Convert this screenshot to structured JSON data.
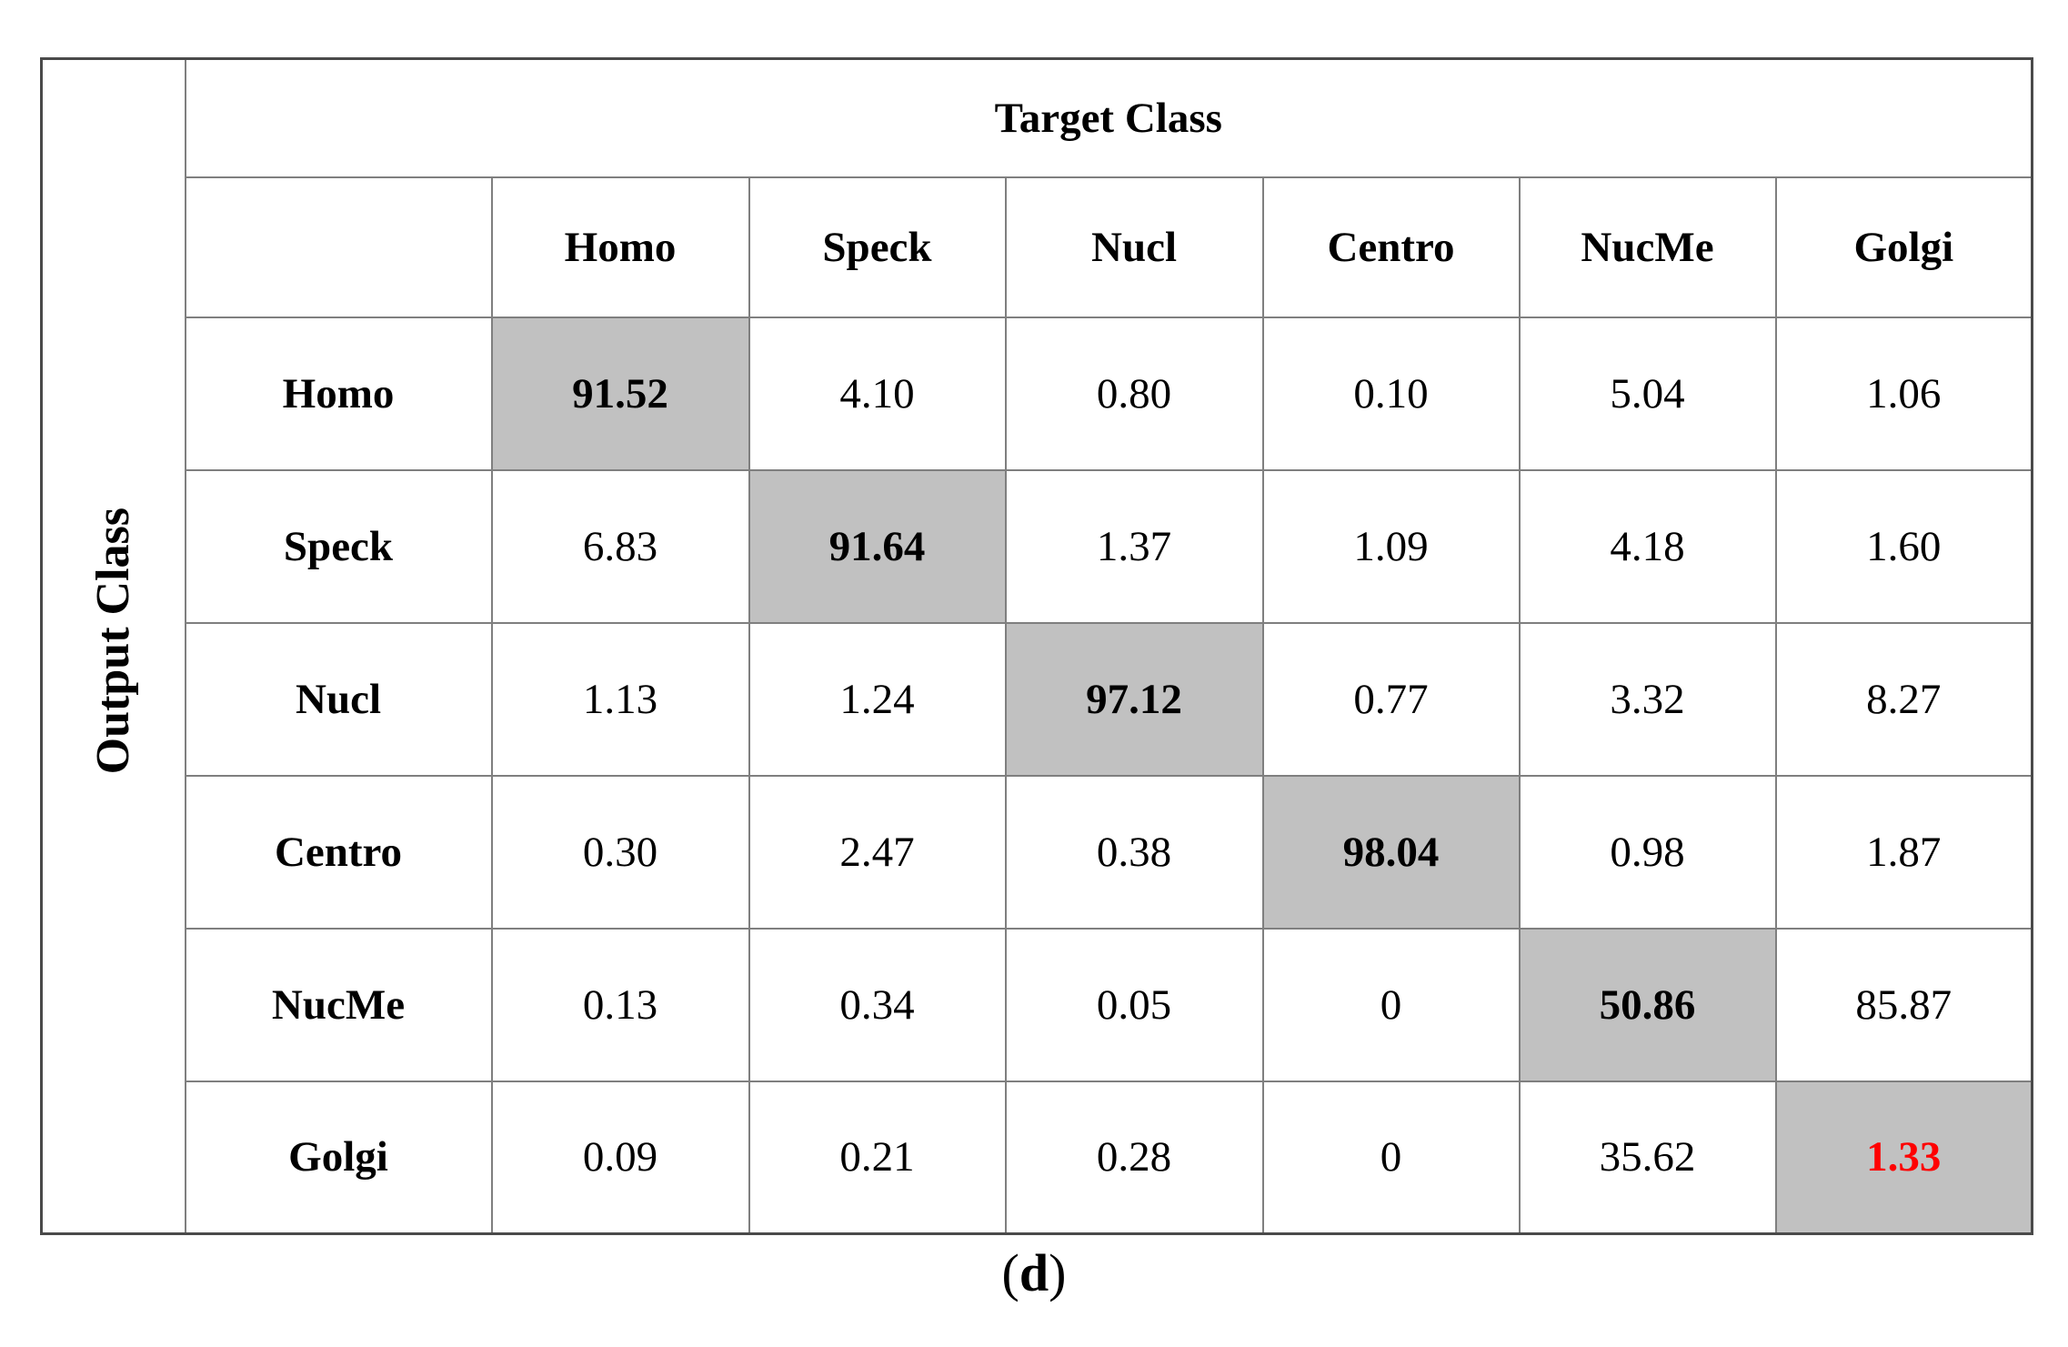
{
  "chart_data": {
    "type": "heatmap",
    "subtype": "confusion-matrix",
    "x_axis_label": "Target Class",
    "y_axis_label": "Output Class",
    "x_categories": [
      "Homo",
      "Speck",
      "Nucl",
      "Centro",
      "NucMe",
      "Golgi"
    ],
    "y_categories": [
      "Homo",
      "Speck",
      "Nucl",
      "Centro",
      "NucMe",
      "Golgi"
    ],
    "cell_text": [
      [
        "91.52",
        "4.10",
        "0.80",
        "0.10",
        "5.04",
        "1.06"
      ],
      [
        "6.83",
        "91.64",
        "1.37",
        "1.09",
        "4.18",
        "1.60"
      ],
      [
        "1.13",
        "1.24",
        "97.12",
        "0.77",
        "3.32",
        "8.27"
      ],
      [
        "0.30",
        "2.47",
        "0.38",
        "98.04",
        "0.98",
        "1.87"
      ],
      [
        "0.13",
        "0.34",
        "0.05",
        "0",
        "50.86",
        "85.87"
      ],
      [
        "0.09",
        "0.21",
        "0.28",
        "0",
        "35.62",
        "1.33"
      ]
    ],
    "matrix": [
      [
        91.52,
        4.1,
        0.8,
        0.1,
        5.04,
        1.06
      ],
      [
        6.83,
        91.64,
        1.37,
        1.09,
        4.18,
        1.6
      ],
      [
        1.13,
        1.24,
        97.12,
        0.77,
        3.32,
        8.27
      ],
      [
        0.3,
        2.47,
        0.38,
        98.04,
        0.98,
        1.87
      ],
      [
        0.13,
        0.34,
        0.05,
        0,
        50.86,
        85.87
      ],
      [
        0.09,
        0.21,
        0.28,
        0,
        35.62,
        1.33
      ]
    ],
    "diagonal_highlighted": true,
    "highlight_color": "#c1c1c1",
    "diagonal_bold": true,
    "red_cell": {
      "row_index": 5,
      "col_index": 5,
      "color": "#ff0000"
    },
    "grid_on": true
  },
  "figure": {
    "caption": {
      "open": "(",
      "letter": "d",
      "close": ")"
    }
  }
}
